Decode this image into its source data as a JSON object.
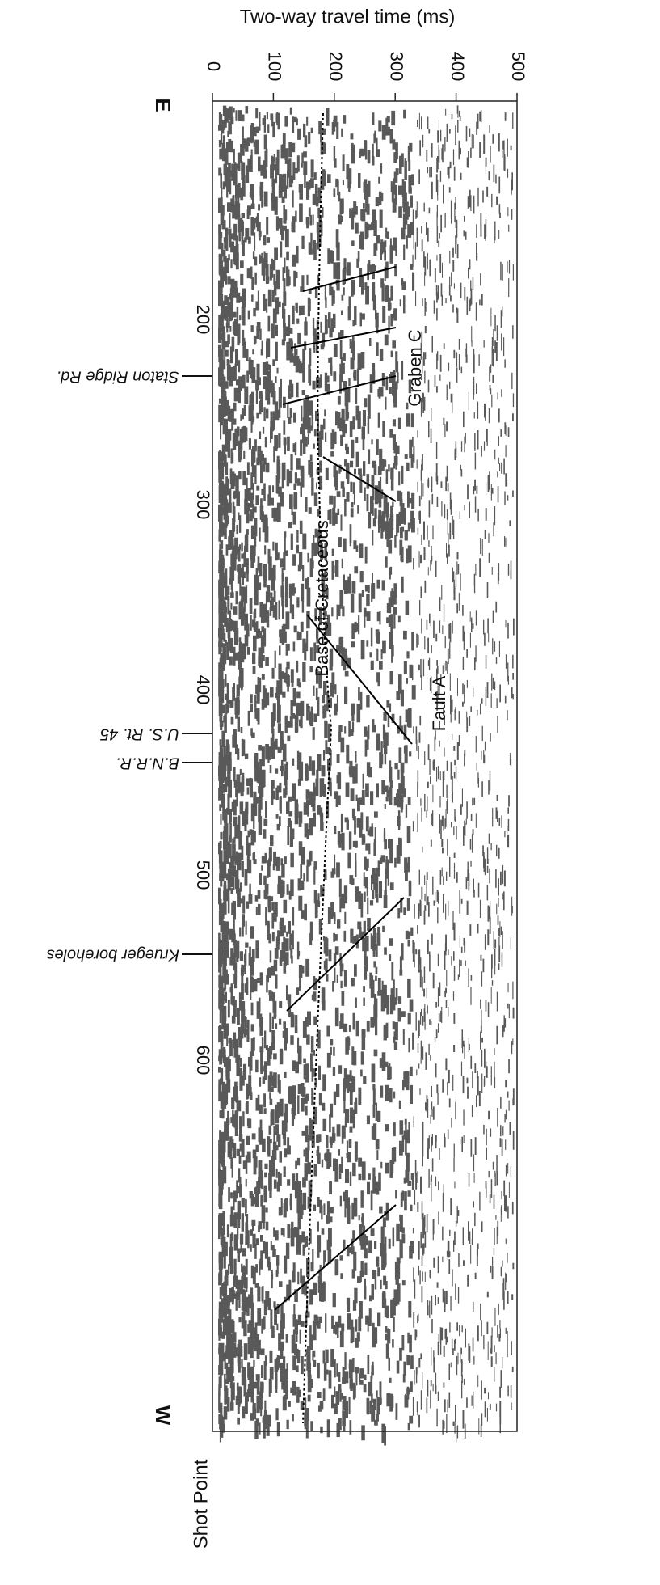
{
  "axis": {
    "title": "Two-way travel time (ms)",
    "ticks": [
      0,
      100,
      200,
      300,
      400,
      500
    ]
  },
  "shot_point": {
    "label": "Shot Point",
    "ticks": [
      200,
      300,
      400,
      500,
      600
    ]
  },
  "ends": {
    "east": "E",
    "west": "W"
  },
  "locations": [
    "Staton Ridge Rd.",
    "U.S. Rt. 45",
    "B.N.R.R.",
    "Krueger boreholes"
  ],
  "annotations": [
    "Graben C",
    "Base of Cretaceous",
    "Fault A"
  ]
}
